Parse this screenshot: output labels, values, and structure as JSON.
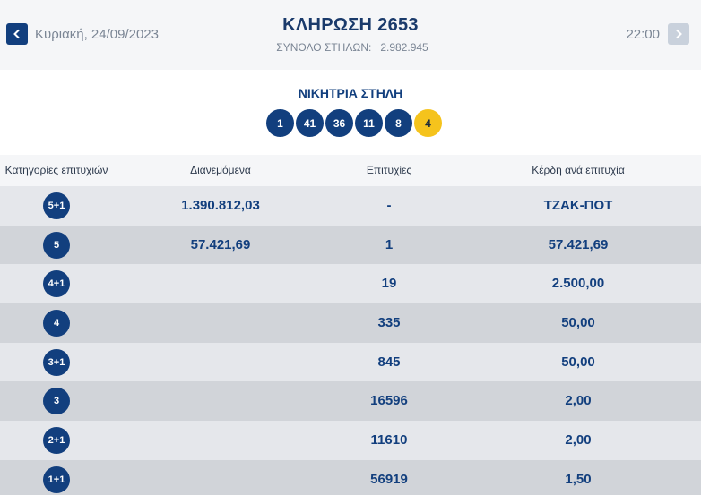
{
  "header": {
    "date": "Κυριακή, 24/09/2023",
    "time": "22:00",
    "title": "ΚΛΗΡΩΣΗ 2653",
    "columns_label": "ΣΥΝΟΛΟ ΣΤΗΛΩΝ:",
    "columns_value": "2.982.945",
    "prev_icon": "chevron-left-icon",
    "next_icon": "chevron-right-icon"
  },
  "winning": {
    "title": "ΝΙΚΗΤΡΙΑ ΣΤΗΛΗ",
    "numbers": [
      "1",
      "41",
      "36",
      "11",
      "8"
    ],
    "joker": "4",
    "colors": {
      "ball": "#123f7e",
      "joker": "#f5c31c"
    }
  },
  "table": {
    "headers": [
      "Κατηγορίες επιτυχιών",
      "Διανεμόμενα",
      "Επιτυχίες",
      "Κέρδη ανά επιτυχία"
    ],
    "rows": [
      {
        "category": "5+1",
        "distributed": "1.390.812,03",
        "winners": "-",
        "prize": "ΤΖΑΚ-ΠΟΤ"
      },
      {
        "category": "5",
        "distributed": "57.421,69",
        "winners": "1",
        "prize": "57.421,69"
      },
      {
        "category": "4+1",
        "distributed": "",
        "winners": "19",
        "prize": "2.500,00"
      },
      {
        "category": "4",
        "distributed": "",
        "winners": "335",
        "prize": "50,00"
      },
      {
        "category": "3+1",
        "distributed": "",
        "winners": "845",
        "prize": "50,00"
      },
      {
        "category": "3",
        "distributed": "",
        "winners": "16596",
        "prize": "2,00"
      },
      {
        "category": "2+1",
        "distributed": "",
        "winners": "11610",
        "prize": "2,00"
      },
      {
        "category": "1+1",
        "distributed": "",
        "winners": "56919",
        "prize": "1,50"
      }
    ]
  }
}
